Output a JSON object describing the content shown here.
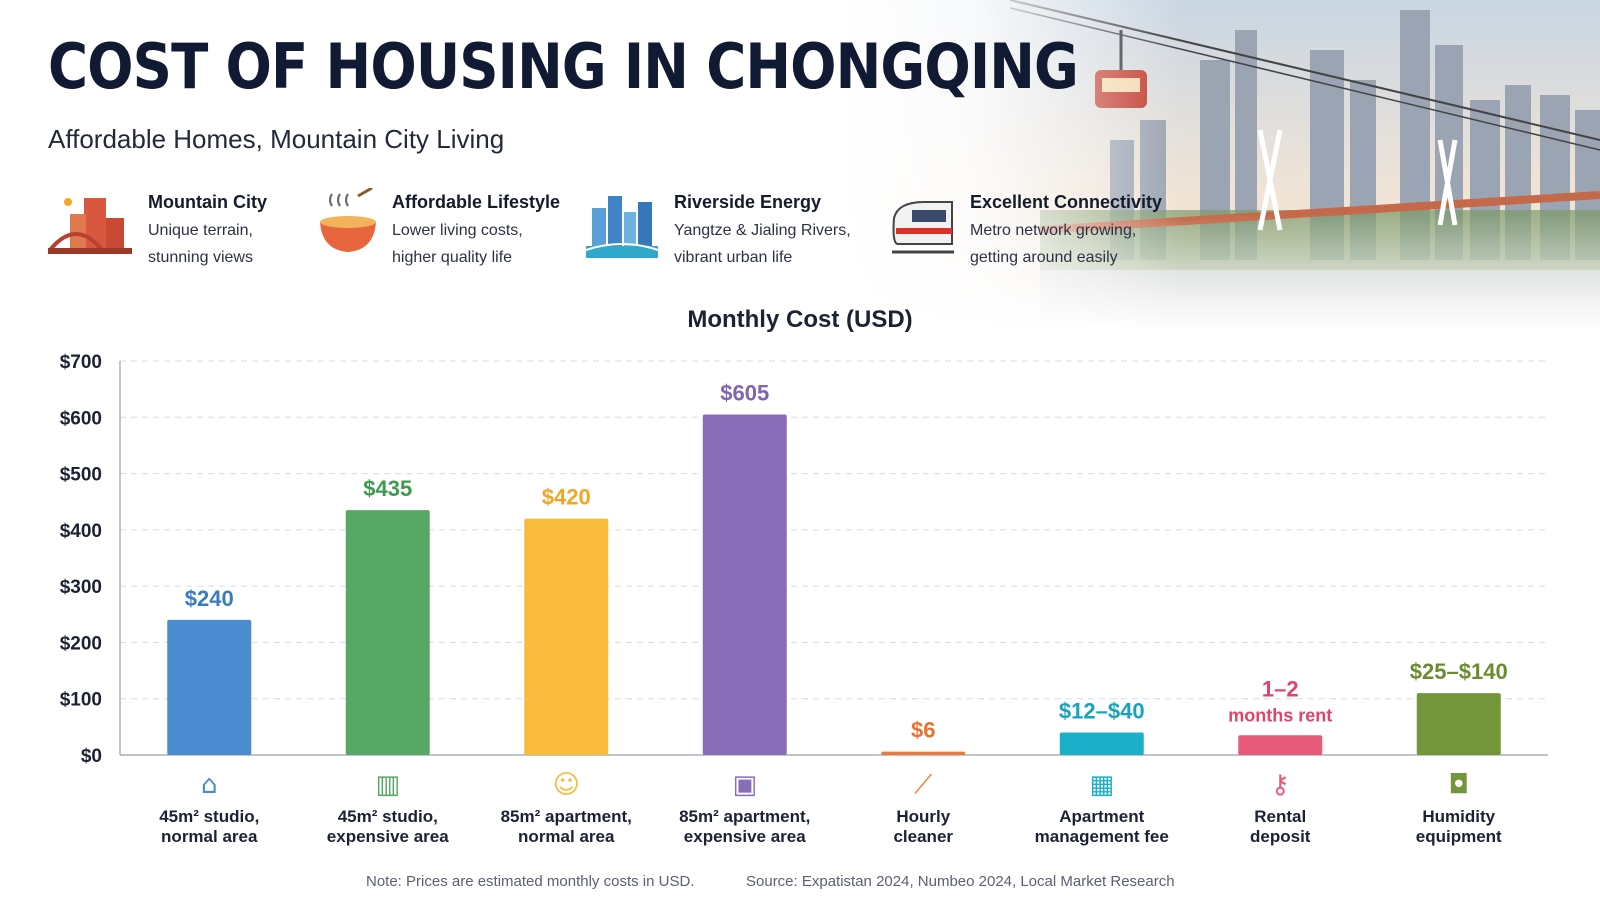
{
  "header": {
    "title": "COST OF HOUSING IN CHONGQING",
    "subtitle": "Affordable Homes, Mountain City Living"
  },
  "features": [
    {
      "icon": "mountain-city-icon",
      "title": "Mountain City",
      "desc_line1": "Unique terrain,",
      "desc_line2": "stunning views"
    },
    {
      "icon": "noodle-bowl-icon",
      "title": "Affordable Lifestyle",
      "desc_line1": "Lower living costs,",
      "desc_line2": "higher quality life"
    },
    {
      "icon": "riverside-skyline-icon",
      "title": "Riverside Energy",
      "desc_line1": "Yangtze & Jialing Rivers,",
      "desc_line2": "vibrant urban life"
    },
    {
      "icon": "train-icon",
      "title": "Excellent Connectivity",
      "desc_line1": "Metro network growing,",
      "desc_line2": "getting around easily"
    }
  ],
  "chart_data": {
    "type": "bar",
    "title": "Monthly Cost (USD)",
    "ylim": [
      0,
      700
    ],
    "yticks": [
      "$0",
      "$100",
      "$200",
      "$300",
      "$400",
      "$500",
      "$600",
      "$700"
    ],
    "grid": true,
    "categories": [
      {
        "line1": "45m² studio,",
        "line2": "normal area",
        "icon": "house-icon"
      },
      {
        "line1": "45m² studio,",
        "line2": "expensive area",
        "icon": "city-building-icon"
      },
      {
        "line1": "85m² apartment,",
        "line2": "normal area",
        "icon": "family-icon"
      },
      {
        "line1": "85m² apartment,",
        "line2": "expensive area",
        "icon": "gift-building-icon"
      },
      {
        "line1": "Hourly",
        "line2": "cleaner",
        "icon": "broom-icon"
      },
      {
        "line1": "Apartment",
        "line2": "management fee",
        "icon": "office-building-icon"
      },
      {
        "line1": "Rental",
        "line2": "deposit",
        "icon": "key-icon"
      },
      {
        "line1": "Humidity",
        "line2": "equipment",
        "icon": "dehumidifier-icon"
      }
    ],
    "values": [
      240,
      435,
      420,
      605,
      6,
      40,
      35,
      110
    ],
    "labels": [
      [
        "$240"
      ],
      [
        "$435"
      ],
      [
        "$420"
      ],
      [
        "$605"
      ],
      [
        "$6"
      ],
      [
        "$12–$40"
      ],
      [
        "1–2",
        "months rent"
      ],
      [
        "$25–$140"
      ]
    ],
    "colors": [
      "#4a8ccf",
      "#58a865",
      "#f8bb3c",
      "#8a6db9",
      "#ec7a3c",
      "#1bb0c8",
      "#e85a7a",
      "#74963a"
    ],
    "label_colors": [
      "#3b7bc0",
      "#3e9a4f",
      "#f2a623",
      "#7f63b2",
      "#e8722f",
      "#17a3bd",
      "#e0446a",
      "#6a8c2c"
    ]
  },
  "footer": {
    "note": "Note: Prices are estimated monthly costs in USD.",
    "source": "Source: Expatistan 2024, Numbeo 2024, Local Market Research"
  }
}
